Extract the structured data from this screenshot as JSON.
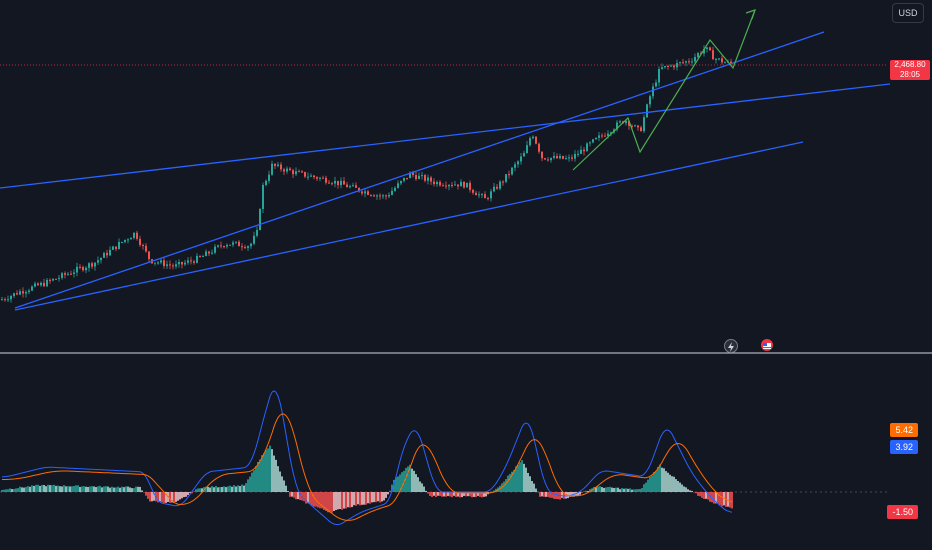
{
  "header": {
    "currency_label": "USD"
  },
  "price_scale": {
    "last_price": "2,468.80",
    "countdown": "28:05"
  },
  "macd_scale": {
    "signal_value": "5.42",
    "macd_value": "3.92",
    "histogram_value": "-1.50"
  },
  "events": [
    {
      "name": "lightning-event-icon",
      "symbol": "⚡"
    },
    {
      "name": "us-flag-event-icon",
      "symbol": "🇺🇸"
    }
  ],
  "colors": {
    "background": "#131722",
    "up": "#26a69a",
    "down": "#ef5350",
    "trendline": "#2962ff",
    "projection": "#4caf50",
    "macd_line": "#2962ff",
    "signal_line": "#ff6d00",
    "price_line": "#f23645"
  },
  "chart_data": [
    {
      "type": "candlestick",
      "title": "",
      "price_axis": "right",
      "current_price": 2468.8,
      "trendlines": [
        {
          "name": "upper-channel"
        },
        {
          "name": "rising-line"
        },
        {
          "name": "lower-channel"
        },
        {
          "name": "green-projection-path"
        }
      ],
      "waypoints": [
        {
          "x": 0,
          "y": 0.0
        },
        {
          "x": 20,
          "y": 0.04
        },
        {
          "x": 45,
          "y": 0.08
        },
        {
          "x": 70,
          "y": 0.13
        },
        {
          "x": 95,
          "y": 0.18
        },
        {
          "x": 120,
          "y": 0.27
        },
        {
          "x": 135,
          "y": 0.32
        },
        {
          "x": 150,
          "y": 0.19
        },
        {
          "x": 175,
          "y": 0.16
        },
        {
          "x": 200,
          "y": 0.2
        },
        {
          "x": 225,
          "y": 0.27
        },
        {
          "x": 250,
          "y": 0.26
        },
        {
          "x": 257,
          "y": 0.32
        },
        {
          "x": 262,
          "y": 0.53
        },
        {
          "x": 272,
          "y": 0.64
        },
        {
          "x": 300,
          "y": 0.6
        },
        {
          "x": 330,
          "y": 0.57
        },
        {
          "x": 355,
          "y": 0.53
        },
        {
          "x": 385,
          "y": 0.49
        },
        {
          "x": 410,
          "y": 0.6
        },
        {
          "x": 435,
          "y": 0.56
        },
        {
          "x": 465,
          "y": 0.55
        },
        {
          "x": 485,
          "y": 0.48
        },
        {
          "x": 505,
          "y": 0.58
        },
        {
          "x": 525,
          "y": 0.7
        },
        {
          "x": 532,
          "y": 0.8
        },
        {
          "x": 542,
          "y": 0.68
        },
        {
          "x": 570,
          "y": 0.67
        },
        {
          "x": 595,
          "y": 0.76
        },
        {
          "x": 625,
          "y": 0.86
        },
        {
          "x": 640,
          "y": 0.8
        },
        {
          "x": 650,
          "y": 0.97
        },
        {
          "x": 660,
          "y": 1.1
        },
        {
          "x": 690,
          "y": 1.14
        },
        {
          "x": 705,
          "y": 1.2
        },
        {
          "x": 715,
          "y": 1.15
        },
        {
          "x": 732,
          "y": 1.12
        }
      ],
      "macd_waypoints": [
        {
          "x": 0,
          "h": 0.5
        },
        {
          "x": 40,
          "h": 1.5
        },
        {
          "x": 100,
          "h": 1.2
        },
        {
          "x": 140,
          "h": 1.0
        },
        {
          "x": 150,
          "h": -2.0
        },
        {
          "x": 175,
          "h": -2.5
        },
        {
          "x": 200,
          "h": 1.0
        },
        {
          "x": 245,
          "h": 1.5
        },
        {
          "x": 262,
          "h": 8.0
        },
        {
          "x": 270,
          "h": 10.5
        },
        {
          "x": 290,
          "h": -1.0
        },
        {
          "x": 330,
          "h": -4.5
        },
        {
          "x": 355,
          "h": -3.0
        },
        {
          "x": 385,
          "h": -2.0
        },
        {
          "x": 395,
          "h": 3.0
        },
        {
          "x": 410,
          "h": 6.0
        },
        {
          "x": 430,
          "h": -1.0
        },
        {
          "x": 460,
          "h": -1.0
        },
        {
          "x": 485,
          "h": -1.0
        },
        {
          "x": 500,
          "h": 1.5
        },
        {
          "x": 522,
          "h": 7.0
        },
        {
          "x": 540,
          "h": -1.0
        },
        {
          "x": 560,
          "h": -1.5
        },
        {
          "x": 575,
          "h": -1.0
        },
        {
          "x": 595,
          "h": 1.2
        },
        {
          "x": 640,
          "h": 0.5
        },
        {
          "x": 660,
          "h": 6.0
        },
        {
          "x": 685,
          "h": 1.0
        },
        {
          "x": 700,
          "h": -1.0
        },
        {
          "x": 715,
          "h": -2.5
        },
        {
          "x": 730,
          "h": -3.5
        }
      ],
      "indicator": "MACD",
      "macd_last": 3.92,
      "signal_last": 5.42,
      "histogram_last": -1.5
    }
  ]
}
